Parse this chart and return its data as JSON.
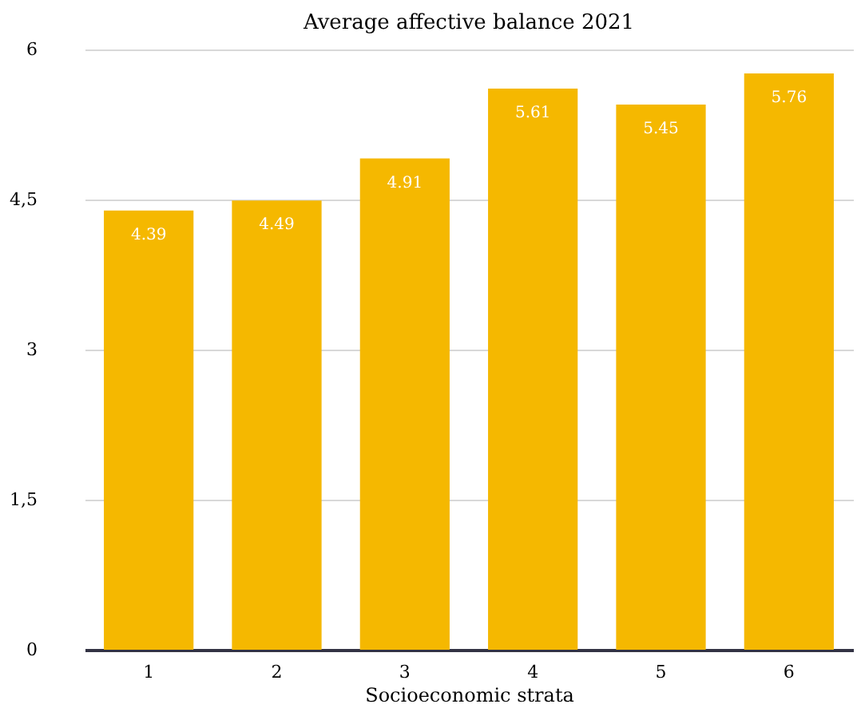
{
  "chart_data": {
    "type": "bar",
    "title": "Average affective balance 2021",
    "xlabel": "Socioeconomic strata",
    "categories": [
      "1",
      "2",
      "3",
      "4",
      "5",
      "6"
    ],
    "values": [
      4.39,
      4.49,
      4.91,
      5.61,
      5.45,
      5.76
    ],
    "color": "#f5b800",
    "ylim": [
      0,
      6
    ],
    "yticks": [
      0,
      {
        "value": 1.5,
        "label": "1,5"
      },
      3,
      {
        "value": 4.5,
        "label": "4,5"
      },
      6
    ],
    "grid": "y",
    "data_labels": true
  }
}
